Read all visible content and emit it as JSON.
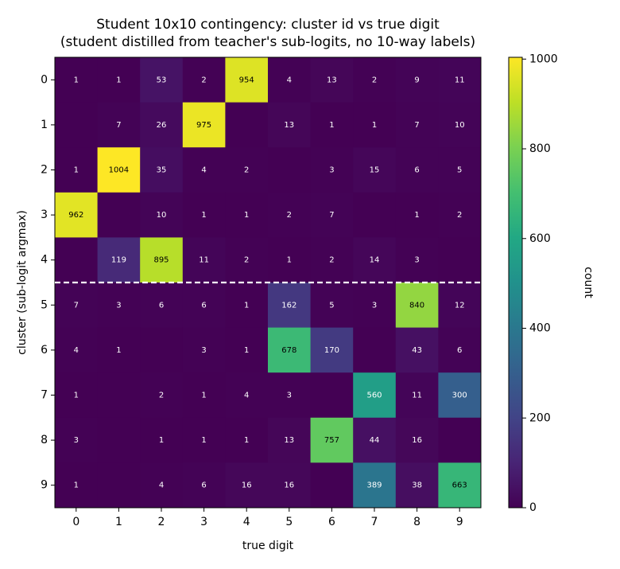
{
  "chart_data": {
    "type": "heatmap",
    "title": "Student 10x10 contingency: cluster id vs true digit",
    "subtitle": "(student distilled from teacher's sub-logits, no 10-way labels)",
    "x_label": "true digit",
    "y_label": "cluster (sub-logit argmax)",
    "x_categories": [
      "0",
      "1",
      "2",
      "3",
      "4",
      "5",
      "6",
      "7",
      "8",
      "9"
    ],
    "y_categories": [
      "0",
      "1",
      "2",
      "3",
      "4",
      "5",
      "6",
      "7",
      "8",
      "9"
    ],
    "values": [
      [
        1,
        1,
        53,
        2,
        954,
        4,
        13,
        2,
        9,
        11
      ],
      [
        null,
        7,
        26,
        975,
        null,
        13,
        1,
        1,
        7,
        10
      ],
      [
        1,
        1004,
        35,
        4,
        2,
        null,
        3,
        15,
        6,
        5
      ],
      [
        962,
        null,
        10,
        1,
        1,
        2,
        7,
        null,
        1,
        2
      ],
      [
        null,
        119,
        895,
        11,
        2,
        1,
        2,
        14,
        3,
        null
      ],
      [
        7,
        3,
        6,
        6,
        1,
        162,
        5,
        3,
        840,
        12
      ],
      [
        4,
        1,
        null,
        3,
        1,
        678,
        170,
        null,
        43,
        6
      ],
      [
        1,
        null,
        2,
        1,
        4,
        3,
        null,
        560,
        11,
        300
      ],
      [
        3,
        null,
        1,
        1,
        1,
        13,
        757,
        44,
        16,
        null
      ],
      [
        1,
        null,
        4,
        6,
        16,
        16,
        null,
        389,
        38,
        663
      ]
    ],
    "colormap": "viridis",
    "divider_line": 4.5,
    "colorbar": {
      "label": "count",
      "lim": [
        0,
        1004
      ],
      "ticks": [
        0,
        200,
        400,
        600,
        800,
        1000
      ]
    }
  }
}
